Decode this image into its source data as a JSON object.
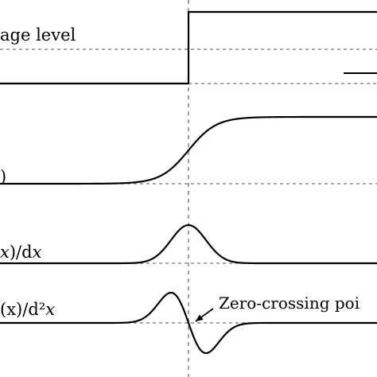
{
  "panels": [
    {
      "id": "signal",
      "label": "age level"
    },
    {
      "id": "function",
      "label": ")"
    },
    {
      "id": "first_derivative",
      "label_paren": "x",
      "label_rest": ")/d",
      "label_var": "x"
    },
    {
      "id": "second_derivative",
      "label_paren": "(x",
      "label_rest": ")/d²",
      "label_var": "x"
    }
  ],
  "annotation": {
    "text": "Zero-crossing poi"
  }
}
